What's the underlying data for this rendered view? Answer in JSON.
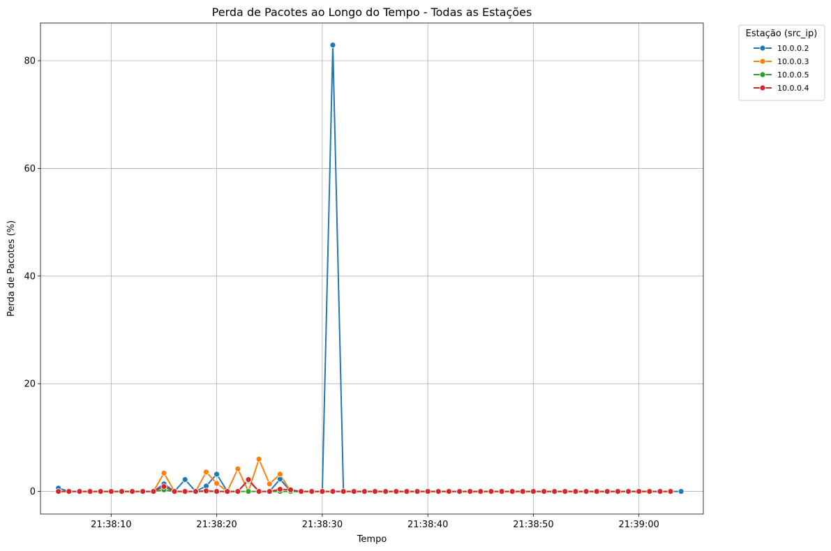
{
  "chart_data": {
    "type": "line",
    "title": "Perda de Pacotes ao Longo do Tempo - Todas as Estações",
    "xlabel": "Tempo",
    "ylabel": "Perda de Pacotes (%)",
    "x_ticks": [
      "21:38:10",
      "21:38:20",
      "21:38:30",
      "21:38:40",
      "21:38:50",
      "21:39:00"
    ],
    "x_tick_seconds": [
      10,
      20,
      30,
      40,
      50,
      60
    ],
    "y_ticks": [
      "0",
      "20",
      "40",
      "60",
      "80"
    ],
    "y_tick_values": [
      0,
      20,
      40,
      60,
      80
    ],
    "xlim": [
      "21:38:03.3",
      "21:39:06.1"
    ],
    "xlim_seconds": [
      3.3,
      66.1
    ],
    "ylim": [
      -4.2,
      87
    ],
    "grid": true,
    "markers": true,
    "legend": {
      "title": "Estação (src_ip)",
      "placement": "outside-top-right"
    },
    "series": [
      {
        "name": "10.0.0.2",
        "color": "#1f77b4",
        "time_start": "21:38:05",
        "points": [
          [
            5,
            0.6
          ],
          [
            6,
            0
          ],
          [
            7,
            0
          ],
          [
            8,
            0
          ],
          [
            9,
            0
          ],
          [
            10,
            0
          ],
          [
            11,
            0
          ],
          [
            12,
            0
          ],
          [
            13,
            0
          ],
          [
            14,
            0
          ],
          [
            15,
            1.4
          ],
          [
            16,
            0
          ],
          [
            17,
            2.2
          ],
          [
            18,
            0
          ],
          [
            19,
            1
          ],
          [
            20,
            3.2
          ],
          [
            21,
            0
          ],
          [
            22,
            0
          ],
          [
            23,
            2
          ],
          [
            24,
            0
          ],
          [
            25,
            0
          ],
          [
            26,
            2.3
          ],
          [
            27,
            0
          ],
          [
            28,
            0
          ],
          [
            29,
            0
          ],
          [
            30,
            0
          ],
          [
            31,
            82.9
          ],
          [
            32,
            0
          ],
          [
            33,
            0
          ],
          [
            34,
            0
          ],
          [
            35,
            0
          ],
          [
            36,
            0
          ],
          [
            37,
            0
          ],
          [
            38,
            0
          ],
          [
            39,
            0
          ],
          [
            40,
            0
          ],
          [
            41,
            0
          ],
          [
            42,
            0
          ],
          [
            43,
            0
          ],
          [
            44,
            0
          ],
          [
            45,
            0
          ],
          [
            46,
            0
          ],
          [
            47,
            0
          ],
          [
            48,
            0
          ],
          [
            49,
            0
          ],
          [
            50,
            0
          ],
          [
            51,
            0
          ],
          [
            52,
            0
          ],
          [
            53,
            0
          ],
          [
            54,
            0
          ],
          [
            55,
            0
          ],
          [
            56,
            0
          ],
          [
            57,
            0
          ],
          [
            58,
            0
          ],
          [
            59,
            0
          ],
          [
            60,
            0
          ],
          [
            61,
            0
          ],
          [
            62,
            0
          ],
          [
            63,
            0
          ],
          [
            64,
            0
          ]
        ]
      },
      {
        "name": "10.0.0.3",
        "color": "#ff7f0e",
        "time_start": "21:38:05",
        "points": [
          [
            5,
            0
          ],
          [
            6,
            0
          ],
          [
            7,
            0
          ],
          [
            8,
            0
          ],
          [
            9,
            0
          ],
          [
            10,
            0
          ],
          [
            11,
            0
          ],
          [
            12,
            0
          ],
          [
            13,
            0
          ],
          [
            14,
            0
          ],
          [
            15,
            3.4
          ],
          [
            16,
            0
          ],
          [
            17,
            0
          ],
          [
            18,
            0
          ],
          [
            19,
            3.6
          ],
          [
            20,
            1.5
          ],
          [
            21,
            0
          ],
          [
            22,
            4.2
          ],
          [
            23,
            0
          ],
          [
            24,
            6
          ],
          [
            25,
            1.4
          ],
          [
            26,
            3.2
          ],
          [
            27,
            0
          ],
          [
            28,
            0
          ],
          [
            29,
            0
          ],
          [
            30,
            0
          ],
          [
            31,
            0
          ],
          [
            32,
            0
          ],
          [
            33,
            0
          ],
          [
            34,
            0
          ],
          [
            35,
            0
          ],
          [
            36,
            0
          ],
          [
            37,
            0
          ],
          [
            38,
            0
          ],
          [
            39,
            0
          ],
          [
            40,
            0
          ],
          [
            41,
            0
          ],
          [
            42,
            0
          ],
          [
            43,
            0
          ],
          [
            44,
            0
          ],
          [
            45,
            0
          ],
          [
            46,
            0
          ],
          [
            47,
            0
          ],
          [
            48,
            0
          ],
          [
            49,
            0
          ],
          [
            50,
            0
          ],
          [
            51,
            0
          ],
          [
            52,
            0
          ],
          [
            53,
            0
          ],
          [
            54,
            0
          ],
          [
            55,
            0
          ],
          [
            56,
            0
          ],
          [
            57,
            0
          ],
          [
            58,
            0
          ],
          [
            59,
            0
          ],
          [
            60,
            0
          ],
          [
            61,
            0
          ],
          [
            62,
            0
          ],
          [
            63,
            0
          ]
        ]
      },
      {
        "name": "10.0.0.5",
        "color": "#2ca02c",
        "time_start": "21:38:05",
        "points": [
          [
            5,
            0
          ],
          [
            6,
            0
          ],
          [
            7,
            0
          ],
          [
            8,
            0
          ],
          [
            9,
            0
          ],
          [
            10,
            0
          ],
          [
            11,
            0
          ],
          [
            12,
            0
          ],
          [
            13,
            0
          ],
          [
            14,
            0
          ],
          [
            15,
            0.3
          ],
          [
            16,
            0
          ],
          [
            17,
            0
          ],
          [
            18,
            0
          ],
          [
            19,
            0
          ],
          [
            20,
            0
          ],
          [
            21,
            0
          ],
          [
            22,
            0
          ],
          [
            23,
            0
          ],
          [
            24,
            0
          ],
          [
            25,
            0
          ],
          [
            26,
            0
          ],
          [
            27,
            0
          ],
          [
            28,
            0
          ],
          [
            29,
            0
          ],
          [
            30,
            0
          ],
          [
            31,
            0
          ],
          [
            32,
            0
          ],
          [
            33,
            0
          ],
          [
            34,
            0
          ],
          [
            35,
            0
          ],
          [
            36,
            0
          ],
          [
            37,
            0
          ],
          [
            38,
            0
          ],
          [
            39,
            0
          ],
          [
            40,
            0
          ],
          [
            41,
            0
          ],
          [
            42,
            0
          ],
          [
            43,
            0
          ],
          [
            44,
            0
          ],
          [
            45,
            0
          ],
          [
            46,
            0
          ],
          [
            47,
            0
          ],
          [
            48,
            0
          ],
          [
            49,
            0
          ],
          [
            50,
            0
          ],
          [
            51,
            0
          ],
          [
            52,
            0
          ],
          [
            53,
            0
          ],
          [
            54,
            0
          ],
          [
            55,
            0
          ],
          [
            56,
            0
          ],
          [
            57,
            0
          ],
          [
            58,
            0
          ],
          [
            59,
            0
          ],
          [
            60,
            0
          ],
          [
            61,
            0
          ],
          [
            62,
            0
          ],
          [
            63,
            0
          ]
        ]
      },
      {
        "name": "10.0.0.4",
        "color": "#d62728",
        "time_start": "21:38:05",
        "points": [
          [
            5,
            0
          ],
          [
            6,
            0
          ],
          [
            7,
            0
          ],
          [
            8,
            0
          ],
          [
            9,
            0
          ],
          [
            10,
            0
          ],
          [
            11,
            0
          ],
          [
            12,
            0
          ],
          [
            13,
            0
          ],
          [
            14,
            0
          ],
          [
            15,
            0.9
          ],
          [
            16,
            0
          ],
          [
            17,
            0
          ],
          [
            18,
            0
          ],
          [
            19,
            0.1
          ],
          [
            20,
            0
          ],
          [
            21,
            0
          ],
          [
            22,
            0
          ],
          [
            23,
            2.2
          ],
          [
            24,
            0
          ],
          [
            25,
            0
          ],
          [
            26,
            0.4
          ],
          [
            27,
            0.3
          ],
          [
            28,
            0
          ],
          [
            29,
            0
          ],
          [
            30,
            0
          ],
          [
            31,
            0
          ],
          [
            32,
            0
          ],
          [
            33,
            0
          ],
          [
            34,
            0
          ],
          [
            35,
            0
          ],
          [
            36,
            0
          ],
          [
            37,
            0
          ],
          [
            38,
            0
          ],
          [
            39,
            0
          ],
          [
            40,
            0
          ],
          [
            41,
            0
          ],
          [
            42,
            0
          ],
          [
            43,
            0
          ],
          [
            44,
            0
          ],
          [
            45,
            0
          ],
          [
            46,
            0
          ],
          [
            47,
            0
          ],
          [
            48,
            0
          ],
          [
            49,
            0
          ],
          [
            50,
            0
          ],
          [
            51,
            0
          ],
          [
            52,
            0
          ],
          [
            53,
            0
          ],
          [
            54,
            0
          ],
          [
            55,
            0
          ],
          [
            56,
            0
          ],
          [
            57,
            0
          ],
          [
            58,
            0
          ],
          [
            59,
            0
          ],
          [
            60,
            0
          ],
          [
            61,
            0
          ],
          [
            62,
            0
          ],
          [
            63,
            0
          ]
        ]
      }
    ]
  }
}
